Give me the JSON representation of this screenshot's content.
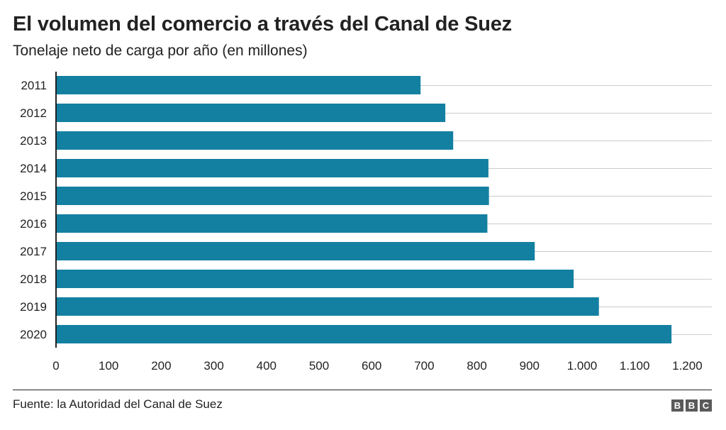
{
  "title": "El volumen del comercio a través del Canal de Suez",
  "subtitle": "Tonelaje neto de carga por año (en millones)",
  "source": "Fuente: la Autoridad del Canal de Suez",
  "logo": [
    "B",
    "B",
    "C"
  ],
  "colors": {
    "bar": "#1380a1",
    "grid": "#cccccc",
    "axis": "#222222"
  },
  "chart_data": {
    "type": "bar",
    "orientation": "horizontal",
    "categories": [
      "2011",
      "2012",
      "2013",
      "2014",
      "2015",
      "2016",
      "2017",
      "2018",
      "2019",
      "2020"
    ],
    "values": [
      693,
      740,
      755,
      822,
      823,
      820,
      910,
      984,
      1032,
      1170
    ],
    "xlim": [
      0,
      1250
    ],
    "xticks": [
      0,
      100,
      200,
      300,
      400,
      500,
      600,
      700,
      800,
      900,
      1000,
      1100,
      1200
    ],
    "xtick_labels": [
      "0",
      "100",
      "200",
      "300",
      "400",
      "500",
      "600",
      "700",
      "800",
      "900",
      "1.000",
      "1.100",
      "1.200"
    ],
    "grid": true
  }
}
